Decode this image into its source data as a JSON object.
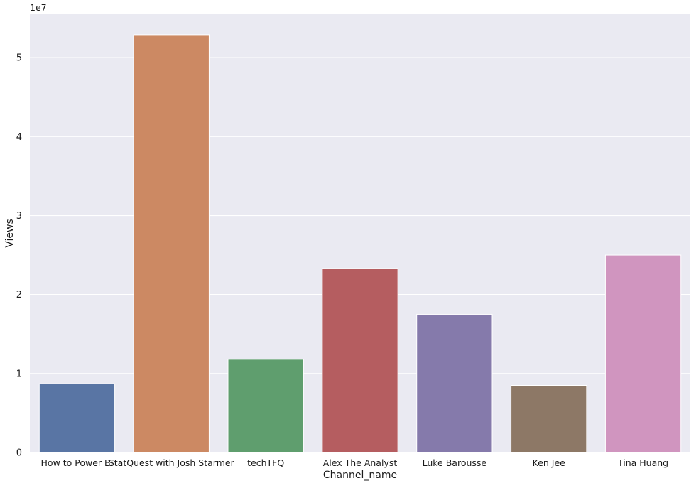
{
  "chart_data": {
    "type": "bar",
    "xlabel": "Channel_name",
    "ylabel": "Views",
    "offset_label": "1e7",
    "ylim": [
      0,
      55500000
    ],
    "yticks": [
      {
        "value": 0,
        "label": "0"
      },
      {
        "value": 10000000,
        "label": "1"
      },
      {
        "value": 20000000,
        "label": "2"
      },
      {
        "value": 30000000,
        "label": "3"
      },
      {
        "value": 40000000,
        "label": "4"
      },
      {
        "value": 50000000,
        "label": "5"
      }
    ],
    "grid": true,
    "categories": [
      "How to Power BI",
      "StatQuest with Josh Starmer",
      "techTFQ",
      "Alex The Analyst",
      "Luke Barousse",
      "Ken Jee",
      "Tina Huang"
    ],
    "values": [
      8700000,
      52900000,
      11800000,
      23300000,
      17500000,
      8500000,
      25000000
    ],
    "colors": [
      "#5975a4",
      "#cc8963",
      "#5f9e6e",
      "#b55d60",
      "#857aab",
      "#8d7866",
      "#d095bf"
    ],
    "style": {
      "plot_background": "#eaeaf2",
      "gridline_color": "#ffffff"
    }
  }
}
